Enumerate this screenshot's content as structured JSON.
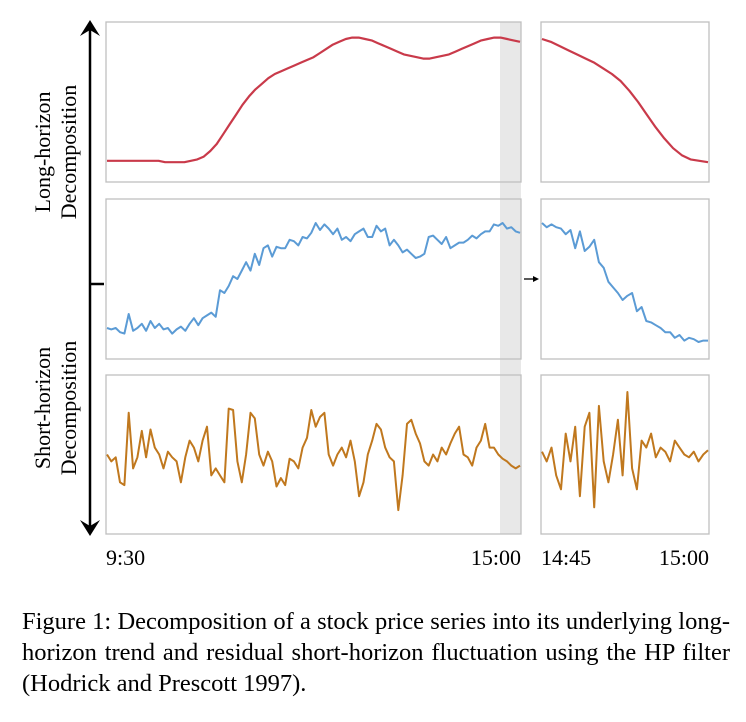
{
  "figure": {
    "side_labels": {
      "long_line1": "Long-horizon",
      "long_line2": "Decomposition",
      "short_line1": "Short-horizon",
      "short_line2": "Decomposition"
    },
    "x_ticks": {
      "main_start": "9:30",
      "main_end": "15:00",
      "zoom_start": "14:45",
      "zoom_end": "15:00"
    },
    "caption": "Figure 1: Decomposition of a stock price series into its underlying long-horizon trend and residual short-horizon fluctuation using the HP filter (Hodrick and Prescott 1997)."
  },
  "colors": {
    "trend": "#c93a4a",
    "price": "#5b9bd5",
    "residual": "#c0781e",
    "highlight": "#e8e8e8",
    "frame": "#bfbfbf"
  },
  "chart_data": [
    {
      "type": "line",
      "panel": "trend",
      "x_range": [
        "9:30",
        "15:00"
      ],
      "ylim": [
        0,
        1
      ],
      "values": [
        0.08,
        0.08,
        0.08,
        0.08,
        0.08,
        0.08,
        0.08,
        0.08,
        0.08,
        0.07,
        0.07,
        0.07,
        0.07,
        0.08,
        0.09,
        0.11,
        0.15,
        0.2,
        0.27,
        0.34,
        0.41,
        0.48,
        0.54,
        0.59,
        0.63,
        0.67,
        0.7,
        0.72,
        0.74,
        0.76,
        0.78,
        0.8,
        0.82,
        0.85,
        0.88,
        0.91,
        0.93,
        0.95,
        0.96,
        0.96,
        0.95,
        0.94,
        0.92,
        0.9,
        0.88,
        0.86,
        0.84,
        0.83,
        0.82,
        0.81,
        0.81,
        0.82,
        0.83,
        0.84,
        0.86,
        0.88,
        0.9,
        0.92,
        0.94,
        0.95,
        0.96,
        0.96,
        0.95,
        0.94,
        0.93
      ]
    },
    {
      "type": "line",
      "panel": "trend-zoom",
      "x_range": [
        "14:45",
        "15:00"
      ],
      "ylim": [
        0,
        1
      ],
      "values": [
        0.95,
        0.93,
        0.9,
        0.87,
        0.84,
        0.81,
        0.78,
        0.74,
        0.7,
        0.65,
        0.58,
        0.5,
        0.41,
        0.32,
        0.24,
        0.17,
        0.12,
        0.09,
        0.08,
        0.07
      ]
    },
    {
      "type": "line",
      "panel": "price",
      "x_range": [
        "9:30",
        "15:00"
      ],
      "ylim": [
        0,
        1
      ],
      "values": [
        0.15,
        0.14,
        0.15,
        0.12,
        0.11,
        0.25,
        0.13,
        0.15,
        0.18,
        0.13,
        0.2,
        0.15,
        0.18,
        0.14,
        0.15,
        0.11,
        0.14,
        0.16,
        0.13,
        0.18,
        0.22,
        0.17,
        0.22,
        0.24,
        0.26,
        0.23,
        0.42,
        0.4,
        0.45,
        0.52,
        0.5,
        0.56,
        0.62,
        0.56,
        0.68,
        0.6,
        0.72,
        0.74,
        0.66,
        0.73,
        0.72,
        0.72,
        0.78,
        0.77,
        0.74,
        0.8,
        0.79,
        0.83,
        0.9,
        0.85,
        0.89,
        0.86,
        0.82,
        0.86,
        0.78,
        0.8,
        0.77,
        0.82,
        0.84,
        0.86,
        0.8,
        0.8,
        0.88,
        0.84,
        0.86,
        0.74,
        0.78,
        0.74,
        0.69,
        0.71,
        0.68,
        0.65,
        0.66,
        0.68,
        0.8,
        0.81,
        0.78,
        0.75,
        0.8,
        0.72,
        0.74,
        0.76,
        0.76,
        0.78,
        0.81,
        0.79,
        0.82,
        0.84,
        0.84,
        0.89,
        0.88,
        0.9,
        0.86,
        0.87,
        0.84,
        0.83
      ]
    },
    {
      "type": "line",
      "panel": "price-zoom",
      "x_range": [
        "14:45",
        "15:00"
      ],
      "ylim": [
        0,
        1
      ],
      "values": [
        0.9,
        0.87,
        0.89,
        0.87,
        0.86,
        0.82,
        0.85,
        0.72,
        0.84,
        0.7,
        0.73,
        0.78,
        0.62,
        0.58,
        0.48,
        0.44,
        0.4,
        0.35,
        0.38,
        0.4,
        0.27,
        0.3,
        0.2,
        0.19,
        0.17,
        0.15,
        0.12,
        0.12,
        0.08,
        0.1,
        0.06,
        0.08,
        0.07,
        0.05,
        0.06,
        0.06
      ]
    },
    {
      "type": "line",
      "panel": "residual",
      "x_range": [
        "9:30",
        "15:00"
      ],
      "ylim": [
        0,
        1
      ],
      "values": [
        0.5,
        0.45,
        0.48,
        0.3,
        0.28,
        0.8,
        0.4,
        0.48,
        0.67,
        0.48,
        0.68,
        0.55,
        0.5,
        0.4,
        0.52,
        0.48,
        0.45,
        0.3,
        0.48,
        0.6,
        0.55,
        0.45,
        0.6,
        0.7,
        0.35,
        0.4,
        0.35,
        0.3,
        0.83,
        0.82,
        0.45,
        0.3,
        0.5,
        0.8,
        0.76,
        0.5,
        0.42,
        0.52,
        0.45,
        0.27,
        0.33,
        0.28,
        0.47,
        0.45,
        0.4,
        0.55,
        0.62,
        0.82,
        0.7,
        0.77,
        0.8,
        0.5,
        0.42,
        0.5,
        0.55,
        0.48,
        0.6,
        0.45,
        0.2,
        0.3,
        0.5,
        0.6,
        0.72,
        0.68,
        0.55,
        0.48,
        0.45,
        0.1,
        0.35,
        0.72,
        0.75,
        0.65,
        0.58,
        0.45,
        0.42,
        0.5,
        0.45,
        0.55,
        0.5,
        0.58,
        0.65,
        0.7,
        0.5,
        0.48,
        0.42,
        0.55,
        0.6,
        0.72,
        0.55,
        0.55,
        0.5,
        0.47,
        0.45,
        0.42,
        0.4,
        0.42
      ]
    },
    {
      "type": "line",
      "panel": "residual-zoom",
      "x_range": [
        "14:45",
        "15:00"
      ],
      "ylim": [
        0,
        1
      ],
      "values": [
        0.52,
        0.45,
        0.55,
        0.35,
        0.25,
        0.65,
        0.45,
        0.7,
        0.2,
        0.7,
        0.8,
        0.12,
        0.85,
        0.45,
        0.3,
        0.5,
        0.75,
        0.35,
        0.95,
        0.4,
        0.25,
        0.6,
        0.55,
        0.65,
        0.48,
        0.55,
        0.52,
        0.45,
        0.6,
        0.55,
        0.5,
        0.48,
        0.52,
        0.45,
        0.5,
        0.53
      ]
    }
  ]
}
